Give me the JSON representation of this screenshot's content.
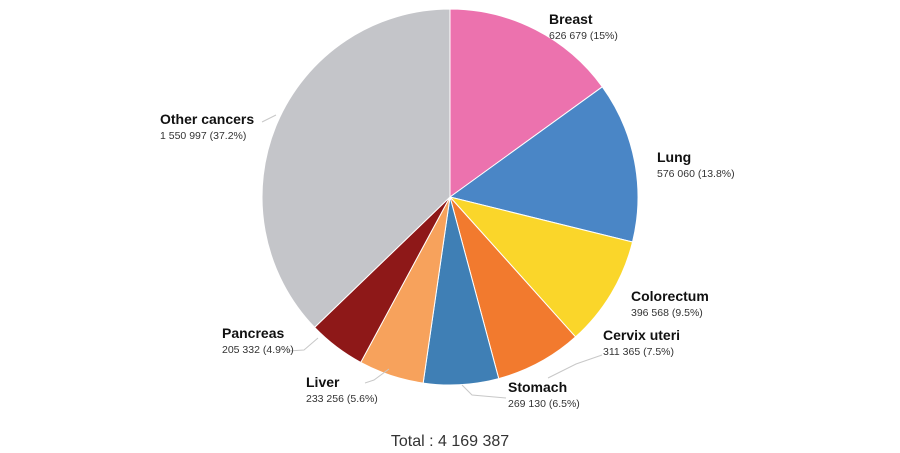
{
  "chart_data": {
    "type": "pie",
    "total_label": "Total : 4 169 387",
    "slices": [
      {
        "name": "Breast",
        "value": 626679,
        "value_label": "626 679 (15%)",
        "percent": 15.0,
        "color": "#EC72AE"
      },
      {
        "name": "Lung",
        "value": 576060,
        "value_label": "576 060 (13.8%)",
        "percent": 13.8,
        "color": "#4A86C6"
      },
      {
        "name": "Colorectum",
        "value": 396568,
        "value_label": "396 568 (9.5%)",
        "percent": 9.5,
        "color": "#FAD62A"
      },
      {
        "name": "Cervix uteri",
        "value": 311365,
        "value_label": "311 365 (7.5%)",
        "percent": 7.5,
        "color": "#F27A2E"
      },
      {
        "name": "Stomach",
        "value": 269130,
        "value_label": "269 130 (6.5%)",
        "percent": 6.5,
        "color": "#3F7FB5"
      },
      {
        "name": "Liver",
        "value": 233256,
        "value_label": "233 256 (5.6%)",
        "percent": 5.6,
        "color": "#F7A25C"
      },
      {
        "name": "Pancreas",
        "value": 205332,
        "value_label": "205 332 (4.9%)",
        "percent": 4.9,
        "color": "#8E1818"
      },
      {
        "name": "Other cancers",
        "value": 1550997,
        "value_label": "1 550 997 (37.2%)",
        "percent": 37.2,
        "color": "#C4C5C9"
      }
    ]
  }
}
